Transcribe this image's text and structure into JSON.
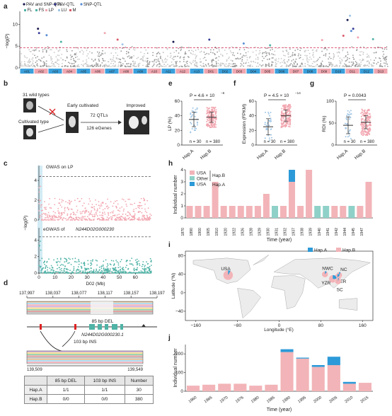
{
  "panel_labels": {
    "a": "a",
    "b": "b",
    "c": "c",
    "d": "d",
    "e": "e",
    "f": "f",
    "g": "g",
    "h": "h",
    "i": "i",
    "j": "j"
  },
  "colors": {
    "pav_sqtl": "#1a1a4e",
    "pav_qtl": "#3a3f99",
    "snp_qtl": "#5a8fd6",
    "fl_fs": "#4fb3a6",
    "lp": "#f2a6b0",
    "lu": "#9fc6e6",
    "m": "#d95a6a",
    "hapA": "#2c9ad8",
    "hapB": "#f2b4b8",
    "other": "#8fd1c8",
    "chrom_hi": "#3aa0dc",
    "chrom_lo": "#f0a7b0"
  },
  "panel_a": {
    "ylabel": "−log(P)",
    "yticks": [
      "0",
      "5",
      "10"
    ],
    "legend": [
      "PAV and SNP-QTL",
      "PAV-QTL",
      "SNP-QTL",
      "FL",
      "FS",
      "LP",
      "LU",
      "M"
    ],
    "chromosomes": [
      "A01",
      "A02",
      "A03",
      "A04",
      "A05",
      "A06",
      "A07",
      "A08",
      "A09",
      "A10",
      "A11",
      "A12",
      "A13",
      "D01",
      "D02",
      "D03",
      "D04",
      "D05",
      "D06",
      "D07",
      "D08",
      "D09",
      "D10",
      "D11",
      "D12",
      "D13"
    ]
  },
  "panel_b": {
    "wild": "31 wild types",
    "cultivated": "Cultivated type",
    "early": "Early cultivated",
    "qtls": "72 QTLs",
    "egenes": "126 eGenes",
    "improved": "Improved"
  },
  "panel_c": {
    "ylabel": "−log(P)",
    "gwas_label": "GWAS on LP",
    "egwas_prefix": "eGWAS of ",
    "egwas_gene": "N244D02G000230",
    "xlabel": "D02 (Mb)",
    "xticks": [
      "0",
      "10",
      "20",
      "30",
      "40",
      "50",
      "60"
    ],
    "y_upper": [
      "0",
      "2",
      "4"
    ],
    "y_lower": [
      "0",
      "2",
      "4"
    ]
  },
  "panel_d": {
    "top_ticks": [
      "137,997",
      "138,037",
      "138,077",
      "138,117",
      "138,157",
      "138,197"
    ],
    "del_label": "85 bp DEL",
    "gene_label": "N244D02G000230.1",
    "ins_label": "103 bp INS",
    "bottom_left": "139,509",
    "bottom_right": "139,549",
    "table": {
      "headers": [
        "",
        "85 bp DEL",
        "103 bp INS",
        "Number"
      ],
      "rows": [
        [
          "Hap.A",
          "1/1",
          "1/1",
          "30"
        ],
        [
          "Hap.B",
          "0/0",
          "0/0",
          "380"
        ]
      ]
    }
  },
  "panel_e": {
    "ylabel": "LP (%)",
    "p": "P = 4.6 × 10",
    "p_exp": "−6",
    "yticks": [
      "0",
      "20",
      "40",
      "60"
    ],
    "xcats": [
      "Hap.A",
      "Hap.B"
    ],
    "n_a": "n = 30",
    "n_b": "n = 380"
  },
  "panel_f": {
    "ylabel": "Expression (FPKM)",
    "p": "P = 4.5 × 10",
    "p_exp": "−14",
    "yticks": [
      "0",
      "20",
      "40",
      "60"
    ],
    "xcats": [
      "Hap.A",
      "Hap.B"
    ],
    "n_a": "n = 30",
    "n_b": "n = 380"
  },
  "panel_g": {
    "ylabel": "RDI (%)",
    "p": "P = 0.0043",
    "yticks": [
      "0",
      "50",
      "100"
    ],
    "xcats": [
      "Hap.A",
      "Hap.B"
    ],
    "n_a": "n = 30",
    "n_b": "n = 380"
  },
  "chart_data": [
    {
      "type": "bar",
      "stacked": true,
      "title": "",
      "xlabel": "Time (year)",
      "ylabel": "Individual number",
      "ylim": [
        0,
        4
      ],
      "yticks": [
        0,
        1,
        2,
        3,
        4
      ],
      "categories": [
        "1870",
        "1890",
        "1900",
        "1905",
        "1910",
        "1920",
        "1922",
        "1926",
        "1928",
        "1929",
        "1930",
        "1931",
        "1932",
        "1937",
        "1938",
        "1939",
        "1940",
        "1941",
        "1942",
        "1944",
        "1945",
        "1947"
      ],
      "series": [
        {
          "name": "USA",
          "group": "Hap.B",
          "color": "#f2b4b8",
          "values": [
            1,
            1,
            1,
            3,
            1,
            1,
            1,
            1,
            1,
            2,
            0,
            1,
            3,
            1,
            4,
            0,
            0,
            1,
            1,
            0,
            1,
            3
          ]
        },
        {
          "name": "Other",
          "group": "Hap.B",
          "color": "#8fd1c8",
          "values": [
            0,
            0,
            0,
            0,
            0,
            0,
            0,
            0,
            0,
            0,
            1,
            0,
            0,
            0,
            0,
            1,
            1,
            0,
            0,
            1,
            0,
            0
          ]
        },
        {
          "name": "USA",
          "group": "Hap.A",
          "color": "#2c9ad8",
          "values": [
            0,
            0,
            0,
            0,
            0,
            0,
            0,
            0,
            0,
            0,
            0,
            0,
            1,
            0,
            0,
            0,
            0,
            0,
            0,
            0,
            0,
            0
          ]
        }
      ],
      "legend_placement": "top-left"
    },
    {
      "type": "bar",
      "stacked": true,
      "title": "",
      "xlabel": "Time (year)",
      "ylabel": "Individual number",
      "ylim": [
        0,
        250
      ],
      "yticks": [
        0,
        100,
        200
      ],
      "categories": [
        "1960",
        "1965",
        "1970",
        "1976",
        "1980",
        "1985",
        "1990",
        "1995",
        "2000",
        "2005",
        "2010",
        "2015"
      ],
      "series": [
        {
          "name": "Hap.B",
          "color": "#f2b4b8",
          "values": [
            30,
            35,
            40,
            40,
            30,
            35,
            210,
            175,
            130,
            140,
            40,
            45
          ]
        },
        {
          "name": "Hap.A",
          "color": "#2c9ad8",
          "values": [
            0,
            0,
            0,
            0,
            0,
            0,
            15,
            5,
            10,
            45,
            10,
            0
          ]
        }
      ]
    }
  ],
  "panel_i": {
    "ylabel": "Latitude (°N)",
    "xlabel": "Longitude (°E)",
    "xticks": [
      "−160",
      "−80",
      "0",
      "80",
      "160"
    ],
    "yticks": [
      "−40",
      "0",
      "40",
      "80"
    ],
    "legend": [
      "Hap.A",
      "Hap.B"
    ],
    "regions": [
      {
        "name": "USA",
        "hapA": 0.08
      },
      {
        "name": "NWC",
        "hapA": 0.1
      },
      {
        "name": "NC",
        "hapA": 0.08
      },
      {
        "name": "YER",
        "hapA": 0.12
      },
      {
        "name": "YZR",
        "hapA": 0.25
      },
      {
        "name": "SC",
        "hapA": 0.05
      }
    ]
  }
}
